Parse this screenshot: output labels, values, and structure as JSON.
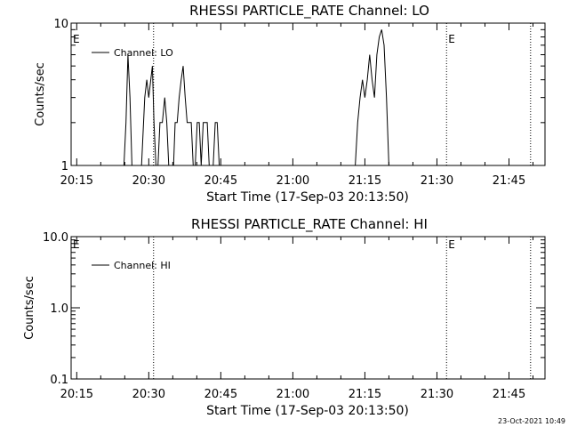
{
  "footer": {
    "timestamp": "23-Oct-2021 10:49"
  },
  "chart_data": [
    {
      "type": "line",
      "title": "RHESSI PARTICLE_RATE Channel: LO",
      "xlabel": "Start Time (17-Sep-03 20:13:50)",
      "ylabel": "Counts/sec",
      "y_scale": "log",
      "ylim": [
        1,
        10
      ],
      "y_ticks": [
        {
          "v": 1,
          "label": "1"
        },
        {
          "v": 10,
          "label": "10"
        }
      ],
      "xlim": [
        "20:13:50",
        "21:52:30"
      ],
      "x_ticks": [
        "20:15",
        "20:30",
        "20:45",
        "21:00",
        "21:15",
        "21:30",
        "21:45"
      ],
      "grid": false,
      "legend": {
        "position": "top-left",
        "entries": [
          "Channel: LO"
        ]
      },
      "markers": [
        {
          "time": "20:31:00",
          "label": ""
        },
        {
          "time": "21:32:00",
          "label": "E"
        },
        {
          "time": "21:49:30",
          "label": ""
        }
      ],
      "edge_label": "E",
      "series": [
        {
          "name": "Channel: LO",
          "x": [
            "20:24:50",
            "20:25:15",
            "20:25:40",
            "20:26:05",
            "20:26:30",
            "20:27:00",
            "20:27:25",
            "20:27:50",
            "20:28:30",
            "20:29:10",
            "20:29:35",
            "20:30:00",
            "20:30:25",
            "20:30:45",
            "20:31:05",
            "20:31:30",
            "20:31:55",
            "20:32:20",
            "20:32:50",
            "20:33:20",
            "20:33:45",
            "20:34:10",
            "20:34:45",
            "20:35:10",
            "20:35:30",
            "20:35:55",
            "20:36:20",
            "20:36:45",
            "20:37:10",
            "20:37:35",
            "20:38:00",
            "20:38:25",
            "20:38:50",
            "20:39:15",
            "20:39:40",
            "20:40:05",
            "20:40:30",
            "20:40:55",
            "20:41:20",
            "20:41:45",
            "20:42:10",
            "20:42:35",
            "20:43:00",
            "20:43:25",
            "20:43:50",
            "20:44:15",
            "20:44:40",
            "21:13:00",
            "21:13:30",
            "21:14:00",
            "21:14:30",
            "21:15:00",
            "21:15:30",
            "21:16:00",
            "21:16:30",
            "21:17:00",
            "21:17:30",
            "21:18:00",
            "21:18:30",
            "21:19:00",
            "21:19:30",
            "21:20:00"
          ],
          "y": [
            1,
            2,
            6,
            3,
            1,
            1,
            1,
            1,
            1,
            3,
            4,
            3,
            4,
            5,
            2,
            1,
            1,
            2,
            2,
            3,
            2,
            1,
            1,
            1,
            2,
            2,
            3,
            4,
            5,
            3,
            2,
            2,
            2,
            1,
            1,
            2,
            2,
            1,
            2,
            2,
            2,
            1,
            1,
            1,
            2,
            2,
            1,
            1,
            2,
            3,
            4,
            3,
            4,
            6,
            4,
            3,
            6,
            8,
            9,
            7,
            3,
            1
          ]
        }
      ]
    },
    {
      "type": "line",
      "title": "RHESSI PARTICLE_RATE Channel: HI",
      "xlabel": "Start Time (17-Sep-03 20:13:50)",
      "ylabel": "Counts/sec",
      "y_scale": "log",
      "ylim": [
        0.1,
        10
      ],
      "y_ticks": [
        {
          "v": 0.1,
          "label": "0.1"
        },
        {
          "v": 1,
          "label": "1.0"
        },
        {
          "v": 10,
          "label": "10.0"
        }
      ],
      "xlim": [
        "20:13:50",
        "21:52:30"
      ],
      "x_ticks": [
        "20:15",
        "20:30",
        "20:45",
        "21:00",
        "21:15",
        "21:30",
        "21:45"
      ],
      "grid": false,
      "legend": {
        "position": "top-left",
        "entries": [
          "Channel: HI"
        ]
      },
      "markers": [
        {
          "time": "20:31:00",
          "label": ""
        },
        {
          "time": "21:32:00",
          "label": "E"
        },
        {
          "time": "21:49:30",
          "label": ""
        }
      ],
      "edge_label": "E",
      "series": [
        {
          "name": "Channel: HI",
          "x": [],
          "y": []
        }
      ]
    }
  ]
}
